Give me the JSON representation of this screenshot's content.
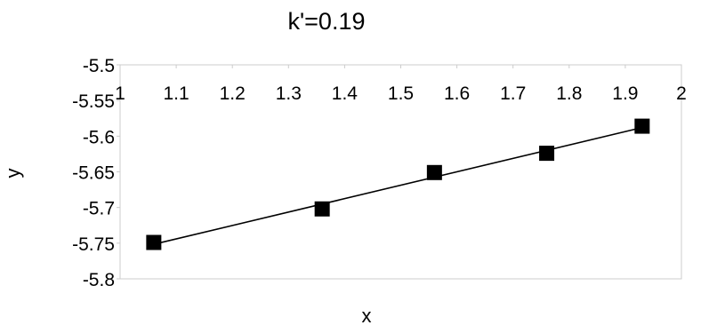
{
  "chart_data": {
    "type": "scatter",
    "title": "k'=0.19",
    "xlabel": "x",
    "ylabel": "y",
    "xlim": [
      1,
      2
    ],
    "ylim": [
      -5.8,
      -5.5
    ],
    "x_ticks": [
      "1",
      "1.1",
      "1.2",
      "1.3",
      "1.4",
      "1.5",
      "1.6",
      "1.7",
      "1.8",
      "1.9",
      "2"
    ],
    "y_ticks": [
      "-5.5",
      "-5.55",
      "-5.6",
      "-5.65",
      "-5.7",
      "-5.75",
      "-5.8"
    ],
    "grid": false,
    "trendline": "linear",
    "series": [
      {
        "x": [
          1.06,
          1.36,
          1.56,
          1.76,
          1.93
        ],
        "y": [
          -5.749,
          -5.702,
          -5.651,
          -5.624,
          -5.586
        ]
      }
    ],
    "colors": {
      "marker": "#000000",
      "line": "#000000",
      "frame": "#cccccc"
    }
  }
}
